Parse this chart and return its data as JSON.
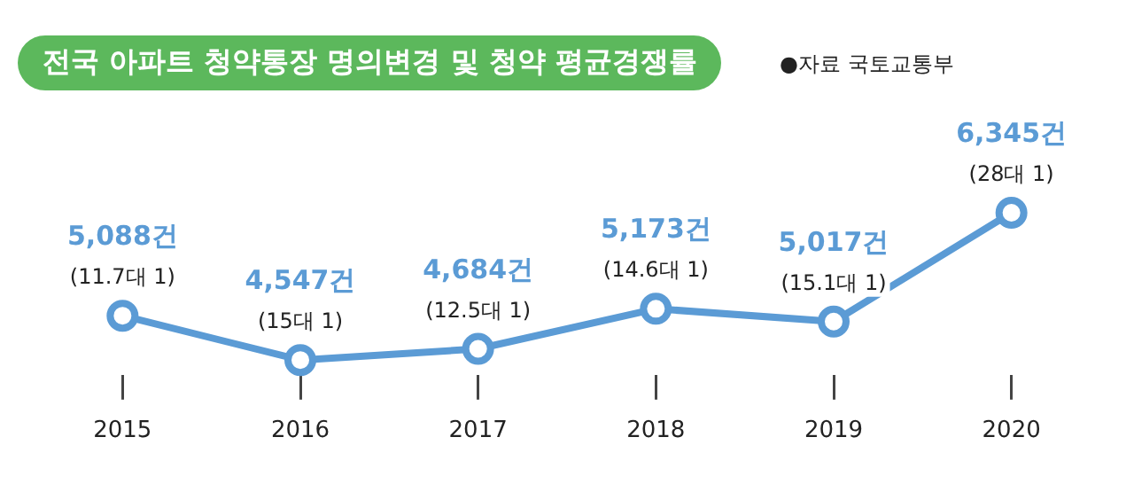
{
  "chart_data": {
    "type": "line",
    "title": "전국 아파트 청약통장 명의변경 및 청약 평균경쟁률",
    "categories": [
      "2015",
      "2016",
      "2017",
      "2018",
      "2019",
      "2020"
    ],
    "series": [
      {
        "color": "#5b9bd5",
        "values": [
          5088,
          4547,
          4684,
          5173,
          5017,
          6345
        ],
        "value_labels": [
          "5,088건",
          "4,547건",
          "4,684건",
          "5,173건",
          "5,017건",
          "6,345건"
        ]
      }
    ],
    "annotations": [
      "●자료 국토교통부",
      {
        "text": "(11.7대 1)",
        "x": "2015",
        "y": 5088
      },
      {
        "text": "(15대 1)",
        "x": "2016",
        "y": 4547
      },
      {
        "text": "(12.5대 1)",
        "x": "2017",
        "y": 4684
      },
      {
        "text": "(14.6대 1)",
        "x": "2018",
        "y": 5173
      },
      {
        "text": "(15.1대 1)",
        "x": "2019",
        "y": 5017
      },
      {
        "text": "(28대 1)",
        "x": "2020",
        "y": 6345
      }
    ],
    "grid": false,
    "legend": false,
    "marker": "circle",
    "line_style": "solid"
  }
}
